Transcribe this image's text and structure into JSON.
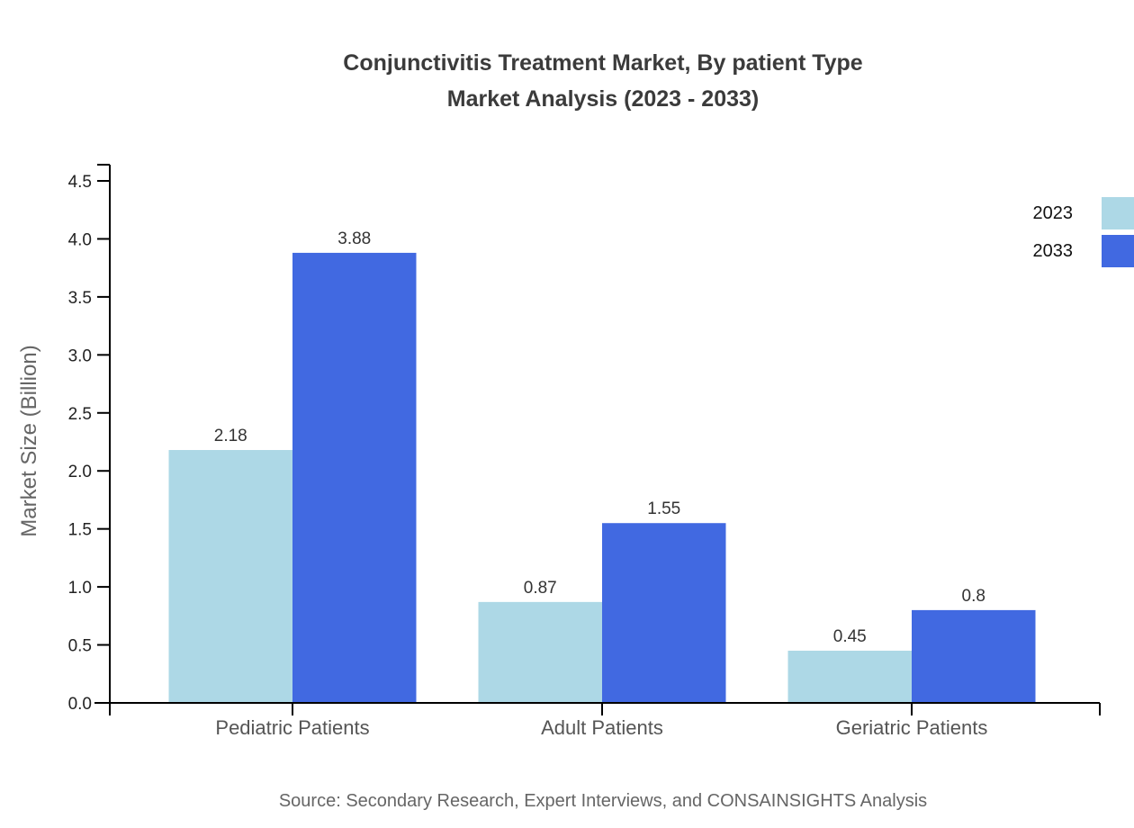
{
  "chart_data": {
    "type": "bar",
    "title": "Conjunctivitis Treatment Market, By patient Type",
    "subtitle": "Market Analysis (2023 - 2033)",
    "ylabel": "Market Size (Billion)",
    "xlabel": "",
    "categories": [
      "Pediatric Patients",
      "Adult Patients",
      "Geriatric Patients"
    ],
    "series": [
      {
        "name": "2023",
        "color": "#ADD8E6",
        "values": [
          2.18,
          0.87,
          0.45
        ],
        "labels": [
          "2.18",
          "0.87",
          "0.45"
        ]
      },
      {
        "name": "2033",
        "color": "#4169E1",
        "values": [
          3.88,
          1.55,
          0.8
        ],
        "labels": [
          "3.88",
          "1.55",
          "0.8"
        ]
      }
    ],
    "ylim": [
      0,
      4.5
    ],
    "yticks": [
      "0.0",
      "0.5",
      "1.0",
      "1.5",
      "2.0",
      "2.5",
      "3.0",
      "3.5",
      "4.0",
      "4.5"
    ],
    "grid": false,
    "legend_position": "top-right",
    "axis_color": "#000000",
    "tick_label_color": "#222222",
    "category_label_color": "#555555",
    "value_label_color": "#333333",
    "source": "Source: Secondary Research, Expert Interviews, and CONSAINSIGHTS Analysis"
  }
}
